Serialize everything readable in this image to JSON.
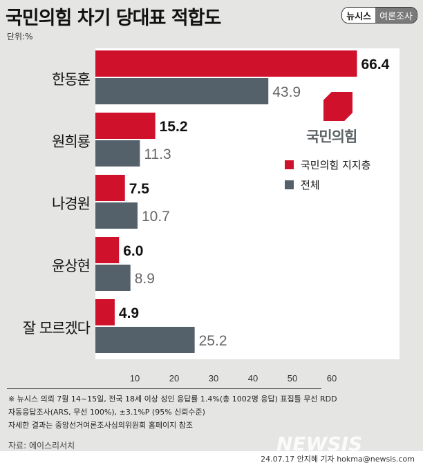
{
  "title": "국민의힘 차기 당대표 적합도",
  "unit": "단위:%",
  "badge": {
    "left": "뉴시스",
    "right": "여론조사"
  },
  "logo_text": "국민의힘",
  "chart_data": {
    "type": "bar",
    "orientation": "horizontal",
    "categories": [
      "한동훈",
      "원희룡",
      "나경원",
      "윤상현",
      "잘 모르겠다"
    ],
    "series": [
      {
        "name": "국민의힘 지지층",
        "color": "#d0112b",
        "values": [
          66.4,
          15.2,
          7.5,
          6.0,
          4.9
        ]
      },
      {
        "name": "전체",
        "color": "#55616a",
        "values": [
          43.9,
          11.3,
          10.7,
          8.9,
          25.2
        ]
      }
    ],
    "xlim": [
      0,
      77
    ],
    "xticks": [
      10,
      20,
      30,
      40,
      50,
      60
    ],
    "legend": "right",
    "grid": false
  },
  "notes": [
    "※ 뉴시스 의뢰 7월 14~15일, 전국 18세 이상 성인 응답률 1.4%(총 1002명 응답) 표집틀 무선 RDD",
    "자동응답조사(ARS, 무선 100%), ±3.1%P (95% 신뢰수준)",
    "자세한 결과는 중앙선거여론조사심의위원회 홈페이지 참조"
  ],
  "source": "자료: 에이스리서치",
  "watermark": "NEWSIS",
  "byline": "24.07.17 안지혜 기자 hokma@newsis.com"
}
